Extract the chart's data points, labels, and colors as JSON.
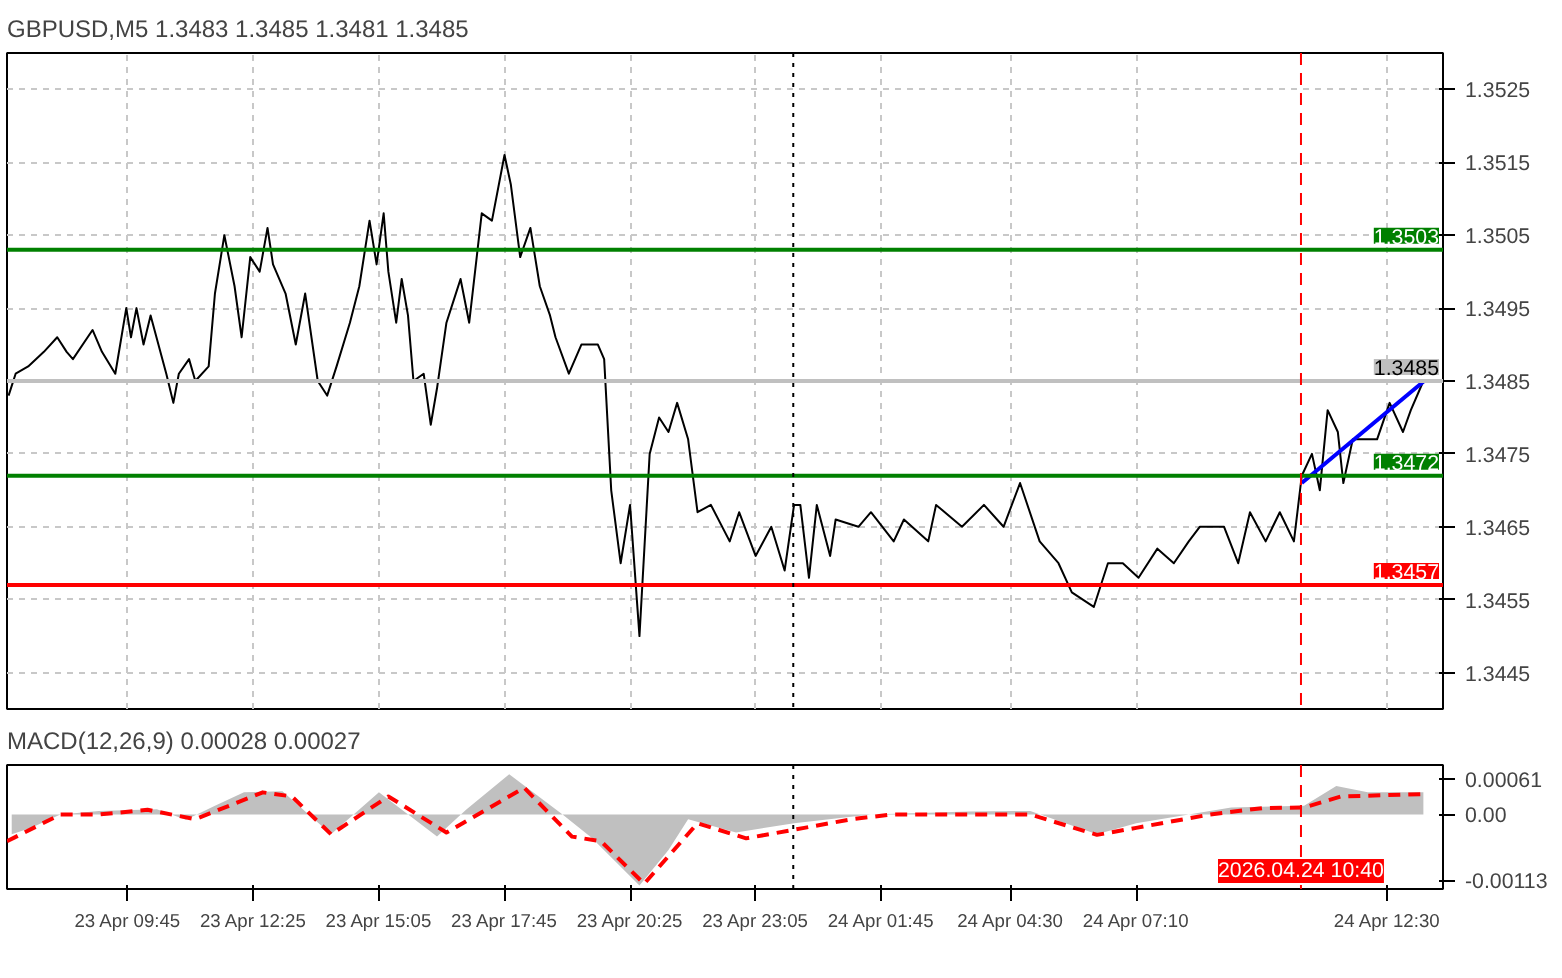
{
  "chart_data": [
    {
      "type": "line",
      "title": "GBPUSD,M5  1.3483 1.3485 1.3481 1.3485",
      "x": [
        "2026-04-23T07:13",
        "2026-04-23T07:22",
        "2026-04-23T07:38",
        "2026-04-23T07:58",
        "2026-04-23T08:15",
        "2026-04-23T08:27",
        "2026-04-23T08:35",
        "2026-04-23T09:00",
        "2026-04-23T09:12",
        "2026-04-23T09:29",
        "2026-04-23T09:43",
        "2026-04-23T09:49",
        "2026-04-23T09:56",
        "2026-04-23T10:05",
        "2026-04-23T10:14",
        "2026-04-23T10:34",
        "2026-04-23T10:43",
        "2026-04-23T10:50",
        "2026-04-23T11:03",
        "2026-04-23T11:11",
        "2026-04-23T11:28",
        "2026-04-23T11:36",
        "2026-04-23T11:48",
        "2026-04-23T12:01",
        "2026-04-23T12:10",
        "2026-04-23T12:21",
        "2026-04-23T12:33",
        "2026-04-23T12:43",
        "2026-04-23T12:50",
        "2026-04-23T13:06",
        "2026-04-23T13:19",
        "2026-04-23T13:31",
        "2026-04-23T13:47",
        "2026-04-23T13:59",
        "2026-04-23T14:11",
        "2026-04-23T14:28",
        "2026-04-23T14:40",
        "2026-04-23T14:53",
        "2026-04-23T15:02",
        "2026-04-23T15:11",
        "2026-04-23T15:17",
        "2026-04-23T15:27",
        "2026-04-23T15:34",
        "2026-04-23T15:42",
        "2026-04-23T15:49",
        "2026-04-23T16:02",
        "2026-04-23T16:11",
        "2026-04-23T16:19",
        "2026-04-23T16:31",
        "2026-04-23T16:40",
        "2026-04-23T16:49",
        "2026-04-23T17:00",
        "2026-04-23T17:16",
        "2026-04-23T17:29",
        "2026-04-23T17:45",
        "2026-04-23T17:53",
        "2026-04-23T18:05",
        "2026-04-23T18:18",
        "2026-04-23T18:30",
        "2026-04-23T18:43",
        "2026-04-23T18:50",
        "2026-04-23T19:07",
        "2026-04-23T19:23",
        "2026-04-23T19:44",
        "2026-04-23T19:52",
        "2026-04-23T20:01",
        "2026-04-23T20:13",
        "2026-04-23T20:25",
        "2026-04-23T20:37",
        "2026-04-23T20:50",
        "2026-04-23T21:02",
        "2026-04-23T21:14",
        "2026-04-23T21:25",
        "2026-04-23T21:39",
        "2026-04-23T21:51",
        "2026-04-23T22:08",
        "2026-04-23T22:32",
        "2026-04-23T22:44",
        "2026-04-23T23:05",
        "2026-04-23T23:25",
        "2026-04-23T23:42",
        "2026-04-23T23:54",
        "2026-04-24T00:02",
        "2026-04-24T00:13",
        "2026-04-24T00:23",
        "2026-04-24T00:40",
        "2026-04-24T00:47",
        "2026-04-24T01:16",
        "2026-04-24T01:32",
        "2026-04-24T02:01",
        "2026-04-24T02:14",
        "2026-04-24T02:45",
        "2026-04-24T02:55",
        "2026-04-24T03:28",
        "2026-04-24T03:56",
        "2026-04-24T04:21",
        "2026-04-24T04:42",
        "2026-04-24T05:07",
        "2026-04-24T05:31",
        "2026-04-24T05:48",
        "2026-04-24T06:16",
        "2026-04-24T06:34",
        "2026-04-24T06:53",
        "2026-04-24T07:13",
        "2026-04-24T07:37",
        "2026-04-24T07:58",
        "2026-04-24T08:17",
        "2026-04-24T08:31",
        "2026-04-24T09:02",
        "2026-04-24T09:20",
        "2026-04-24T09:35",
        "2026-04-24T09:55",
        "2026-04-24T10:13",
        "2026-04-24T10:31",
        "2026-04-24T10:41",
        "2026-04-24T10:54",
        "2026-04-24T11:04",
        "2026-04-24T11:14",
        "2026-04-24T11:27",
        "2026-04-24T11:34",
        "2026-04-24T11:46",
        "2026-04-24T12:02",
        "2026-04-24T12:17",
        "2026-04-24T12:33",
        "2026-04-24T12:50",
        "2026-04-24T13:00",
        "2026-04-24T13:16"
      ],
      "series": [
        {
          "color": "#000000",
          "values": [
            1.3483,
            1.3486,
            1.3487,
            1.3489,
            1.3491,
            1.3489,
            1.3488,
            1.3492,
            1.3489,
            1.3486,
            1.3495,
            1.3491,
            1.3495,
            1.349,
            1.3494,
            1.3486,
            1.3482,
            1.3486,
            1.3488,
            1.3485,
            1.3487,
            1.3497,
            1.3505,
            1.3498,
            1.3491,
            1.3502,
            1.35,
            1.3506,
            1.3501,
            1.3497,
            1.349,
            1.3497,
            1.3485,
            1.3483,
            1.3487,
            1.3493,
            1.3498,
            1.3507,
            1.3501,
            1.3508,
            1.35,
            1.3493,
            1.3499,
            1.3494,
            1.3485,
            1.3486,
            1.3479,
            1.3484,
            1.3493,
            1.3496,
            1.3499,
            1.3493,
            1.3508,
            1.3507,
            1.3516,
            1.3512,
            1.3502,
            1.3506,
            1.3498,
            1.3494,
            1.3491,
            1.3486,
            1.349,
            1.349,
            1.3488,
            1.347,
            1.346,
            1.3468,
            1.345,
            1.3475,
            1.348,
            1.3478,
            1.3482,
            1.3477,
            1.3467,
            1.3468,
            1.3463,
            1.3467,
            1.3461,
            1.3465,
            1.3459,
            1.3468,
            1.3468,
            1.3458,
            1.3468,
            1.3461,
            1.3466,
            1.3465,
            1.3467,
            1.3463,
            1.3466,
            1.3463,
            1.3468,
            1.3465,
            1.3468,
            1.3465,
            1.3471,
            1.3463,
            1.346,
            1.3456,
            1.3454,
            1.346,
            1.346,
            1.3458,
            1.3462,
            1.346,
            1.3463,
            1.3465,
            1.3465,
            1.346,
            1.3467,
            1.3463,
            1.3467,
            1.3463,
            1.3472,
            1.3475,
            1.347,
            1.3481,
            1.3478,
            1.3471,
            1.3477,
            1.3477,
            1.3477,
            1.3482,
            1.3478,
            1.3481,
            1.3485
          ]
        },
        {
          "type": "line",
          "color": "#0000ff",
          "x": [
            "2026-04-24T10:41",
            "2026-04-24T13:17"
          ],
          "values": [
            1.3471,
            1.3485
          ]
        }
      ],
      "xlim": [
        "2026-04-23T07:11",
        "2026-04-24T13:41"
      ],
      "ylim": [
        1.344,
        1.353
      ],
      "xticks": [
        "2026-04-23T09:45",
        "2026-04-23T12:25",
        "2026-04-23T15:05",
        "2026-04-23T17:45",
        "2026-04-23T20:25",
        "2026-04-23T23:05",
        "2026-04-24T01:45",
        "2026-04-24T04:30",
        "2026-04-24T07:10",
        "2026-04-24T12:30"
      ],
      "yticks": [
        1.3445,
        1.3455,
        1.3465,
        1.3475,
        1.3485,
        1.3495,
        1.3505,
        1.3515,
        1.3525
      ],
      "tick_labels": "y",
      "grid": true,
      "ref_lines": [
        {
          "axis": "y",
          "value": 1.3503,
          "label": "1.3503",
          "color": "#008000"
        },
        {
          "axis": "y",
          "value": 1.3472,
          "label": "1.3472",
          "color": "#008000"
        },
        {
          "axis": "y",
          "value": 1.3457,
          "label": "1.3457",
          "color": "#ff0000"
        },
        {
          "axis": "y",
          "value": 1.3485,
          "label": "1.3485",
          "color": "#c0c0c0"
        },
        {
          "axis": "x",
          "value": "2026-04-23T23:53",
          "color": "#000000",
          "line_style": "dotted"
        },
        {
          "axis": "x",
          "value": "2026-04-24T10:40",
          "color": "#ff0000",
          "line_style": "dashed"
        }
      ]
    },
    {
      "type": "line",
      "title": "MACD(12,26,9) 0.00028 0.00027",
      "series": [
        {
          "type": "area",
          "color": "#c0c0c0",
          "x": [
            "2026-04-23T07:17",
            "2026-04-23T07:42",
            "2026-04-23T08:19",
            "2026-04-23T09:08",
            "2026-04-23T10:22",
            "2026-04-23T10:59",
            "2026-04-23T11:36",
            "2026-04-23T12:13",
            "2026-04-23T13:02",
            "2026-04-23T14:04",
            "2026-04-23T15:05",
            "2026-04-23T16:19",
            "2026-04-23T16:56",
            "2026-04-23T17:51",
            "2026-04-23T18:59",
            "2026-04-23T19:36",
            "2026-04-23T20:37",
            "2026-04-23T21:14",
            "2026-04-23T21:39",
            "2026-04-23T22:40",
            "2026-04-23T23:54",
            "2026-04-24T01:32",
            "2026-04-24T03:36",
            "2026-04-24T04:55",
            "2026-04-24T06:20",
            "2026-04-24T07:10",
            "2026-04-24T08:17",
            "2026-04-24T09:11",
            "2026-04-24T10:44",
            "2026-04-24T11:25",
            "2026-04-24T12:05",
            "2026-04-24T13:16"
          ],
          "values": [
            -0.00034,
            -0.00023,
            0,
            6e-05,
            9e-05,
            -9e-05,
            0.00015,
            0.00038,
            0.0004,
            -0.00034,
            0.00038,
            -0.00038,
            8e-05,
            0.00069,
            0,
            -0.0004,
            -0.00122,
            -0.00061,
            -8e-05,
            -0.00031,
            -0.00015,
            0,
            5e-05,
            6e-05,
            -0.00034,
            -0.00015,
            0,
            0.00012,
            0.00015,
            0.00049,
            0.00038,
            0.00038
          ]
        },
        {
          "type": "line",
          "color": "#ff0000",
          "line_style": "dashed",
          "x": [
            "2026-04-23T07:11",
            "2026-04-23T08:19",
            "2026-04-23T09:08",
            "2026-04-23T10:10",
            "2026-04-23T11:11",
            "2026-04-23T12:37",
            "2026-04-23T13:14",
            "2026-04-23T14:04",
            "2026-04-23T15:17",
            "2026-04-23T16:31",
            "2026-04-23T18:10",
            "2026-04-23T19:11",
            "2026-04-23T19:48",
            "2026-04-23T20:43",
            "2026-04-23T21:51",
            "2026-04-23T22:53",
            "2026-04-24T00:07",
            "2026-04-24T01:08",
            "2026-04-24T01:58",
            "2026-04-24T04:55",
            "2026-04-24T06:20",
            "2026-04-24T07:10",
            "2026-04-24T08:44",
            "2026-04-24T09:51",
            "2026-04-24T10:44",
            "2026-04-24T11:31",
            "2026-04-24T13:16"
          ],
          "values": [
            -0.00046,
            0,
            0,
            8e-05,
            -8e-05,
            0.00038,
            0.00031,
            -0.00034,
            0.00031,
            -0.00031,
            0.00046,
            -0.00038,
            -0.00046,
            -0.00119,
            -0.00015,
            -0.00041,
            -0.00023,
            -8e-05,
            0,
            0,
            -0.00035,
            -0.00023,
            0,
            0.00011,
            0.00012,
            0.00031,
            0.00035
          ]
        }
      ],
      "xlim": [
        "2026-04-23T07:11",
        "2026-04-24T13:41"
      ],
      "ylim": [
        -0.00128,
        0.00085
      ],
      "xticks": [
        {
          "value": "2026-04-23T09:45",
          "label": "23 Apr 09:45"
        },
        {
          "value": "2026-04-23T12:25",
          "label": "23 Apr 12:25"
        },
        {
          "value": "2026-04-23T15:05",
          "label": "23 Apr 15:05"
        },
        {
          "value": "2026-04-23T17:45",
          "label": "23 Apr 17:45"
        },
        {
          "value": "2026-04-23T20:25",
          "label": "23 Apr 20:25"
        },
        {
          "value": "2026-04-23T23:05",
          "label": "23 Apr 23:05"
        },
        {
          "value": "2026-04-24T01:45",
          "label": "24 Apr 01:45"
        },
        {
          "value": "2026-04-24T04:30",
          "label": "24 Apr 04:30"
        },
        {
          "value": "2026-04-24T07:10",
          "label": "24 Apr 07:10"
        },
        {
          "value": "2026-04-24T12:30",
          "label": "24 Apr 12:30"
        }
      ],
      "yticks": [
        {
          "value": -0.00113,
          "label": "-0.00113"
        },
        {
          "value": 0,
          "label": "0.00"
        },
        {
          "value": 0.00061,
          "label": "0.00061"
        }
      ],
      "ref_lines": [
        {
          "axis": "x",
          "value": "2026-04-23T23:53",
          "color": "#000000",
          "line_style": "dotted"
        },
        {
          "axis": "x",
          "value": "2026-04-24T10:40",
          "label": "2026.04.24 10:40",
          "color": "#ff0000",
          "line_style": "dashed"
        }
      ]
    }
  ]
}
